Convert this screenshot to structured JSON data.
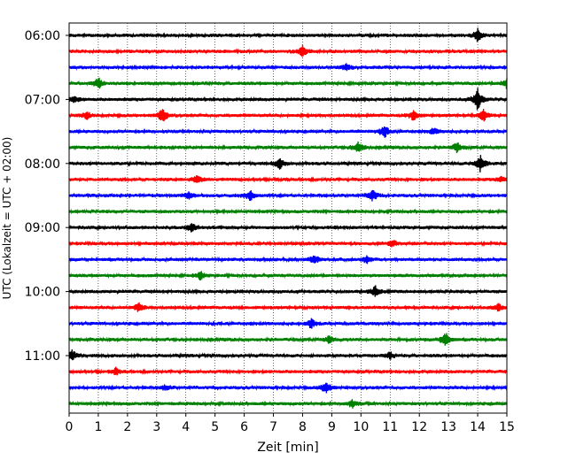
{
  "chart_data": {
    "type": "line",
    "title": "",
    "xlabel": "Zeit  [min]",
    "ylabel": "UTC (Lokalzeit = UTC + 02:00)",
    "xlim": [
      0,
      15
    ],
    "x_ticks": [
      "0",
      "1",
      "2",
      "3",
      "4",
      "5",
      "6",
      "7",
      "8",
      "9",
      "10",
      "11",
      "12",
      "13",
      "14",
      "15"
    ],
    "y_tick_labels": [
      "06:00",
      "07:00",
      "08:00",
      "09:00",
      "10:00",
      "11:00"
    ],
    "vertical_grid": true,
    "grid_style": "dotted",
    "trace_minutes": 15,
    "series": [
      {
        "start": "06:00",
        "color": "#000000",
        "events": [
          [
            14.0,
            1.0
          ]
        ]
      },
      {
        "start": "06:15",
        "color": "#ff0000",
        "events": [
          [
            8.0,
            0.8
          ]
        ]
      },
      {
        "start": "06:30",
        "color": "#0000ff",
        "events": [
          [
            9.5,
            0.5
          ]
        ]
      },
      {
        "start": "06:45",
        "color": "#008000",
        "events": [
          [
            1.0,
            0.9
          ],
          [
            15.0,
            0.8
          ]
        ]
      },
      {
        "start": "07:00",
        "color": "#000000",
        "events": [
          [
            14.0,
            1.8
          ],
          [
            0.2,
            0.5
          ]
        ]
      },
      {
        "start": "07:15",
        "color": "#ff0000",
        "events": [
          [
            0.6,
            0.6
          ],
          [
            3.2,
            1.2
          ],
          [
            11.8,
            0.9
          ],
          [
            14.2,
            0.9
          ]
        ]
      },
      {
        "start": "07:30",
        "color": "#0000ff",
        "events": [
          [
            10.8,
            1.1
          ],
          [
            12.5,
            0.5
          ]
        ]
      },
      {
        "start": "07:45",
        "color": "#008000",
        "events": [
          [
            9.9,
            0.9
          ],
          [
            13.3,
            0.8
          ]
        ]
      },
      {
        "start": "08:00",
        "color": "#000000",
        "events": [
          [
            7.2,
            0.9
          ],
          [
            14.1,
            1.4
          ]
        ]
      },
      {
        "start": "08:15",
        "color": "#ff0000",
        "events": [
          [
            4.4,
            0.8
          ],
          [
            14.8,
            0.4
          ]
        ]
      },
      {
        "start": "08:30",
        "color": "#0000ff",
        "events": [
          [
            6.2,
            0.9
          ],
          [
            10.4,
            0.9
          ],
          [
            4.1,
            0.5
          ]
        ]
      },
      {
        "start": "08:45",
        "color": "#008000",
        "events": []
      },
      {
        "start": "09:00",
        "color": "#000000",
        "events": [
          [
            4.2,
            0.8
          ]
        ]
      },
      {
        "start": "09:15",
        "color": "#ff0000",
        "events": [
          [
            11.1,
            0.6
          ]
        ]
      },
      {
        "start": "09:30",
        "color": "#0000ff",
        "events": [
          [
            8.4,
            0.8
          ],
          [
            10.2,
            0.6
          ]
        ]
      },
      {
        "start": "09:45",
        "color": "#008000",
        "events": [
          [
            4.5,
            0.7
          ]
        ]
      },
      {
        "start": "10:00",
        "color": "#000000",
        "events": [
          [
            10.5,
            0.9
          ]
        ]
      },
      {
        "start": "10:15",
        "color": "#ff0000",
        "events": [
          [
            2.4,
            0.8
          ],
          [
            14.7,
            0.6
          ]
        ]
      },
      {
        "start": "10:30",
        "color": "#0000ff",
        "events": [
          [
            8.3,
            0.7
          ]
        ]
      },
      {
        "start": "10:45",
        "color": "#008000",
        "events": [
          [
            12.9,
            1.1
          ],
          [
            8.9,
            0.5
          ]
        ]
      },
      {
        "start": "11:00",
        "color": "#000000",
        "events": [
          [
            0.1,
            1.0
          ],
          [
            11.0,
            0.5
          ]
        ]
      },
      {
        "start": "11:15",
        "color": "#ff0000",
        "events": [
          [
            1.6,
            0.6
          ]
        ]
      },
      {
        "start": "11:30",
        "color": "#0000ff",
        "events": [
          [
            8.8,
            0.9
          ],
          [
            3.3,
            0.4
          ]
        ]
      },
      {
        "start": "11:45",
        "color": "#008000",
        "events": [
          [
            9.7,
            0.6
          ]
        ]
      }
    ]
  }
}
